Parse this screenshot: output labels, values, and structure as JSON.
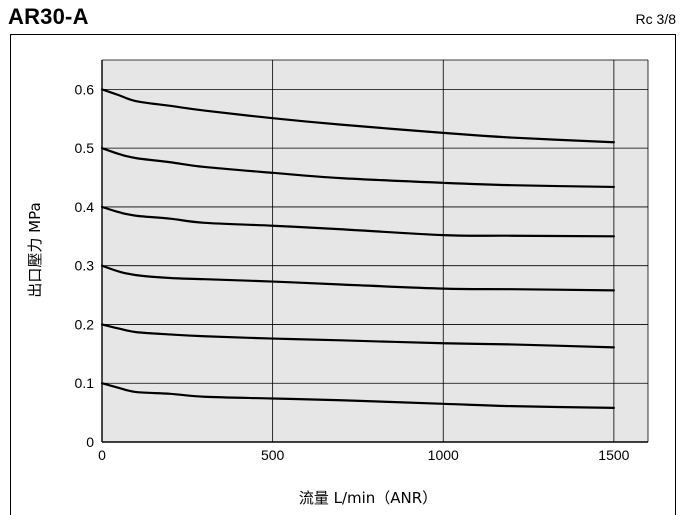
{
  "header": {
    "title": "AR30-A",
    "port_size": "Rc 3/8"
  },
  "chart_data": {
    "type": "line",
    "title": "AR30-A",
    "xlabel": "流量 L/min（ANR）",
    "ylabel": "出口壓力 MPa",
    "xlim": [
      0,
      1600
    ],
    "ylim": [
      0,
      0.65
    ],
    "x_ticks": [
      "0",
      "500",
      "1000",
      "1500"
    ],
    "y_ticks": [
      "0",
      "0.1",
      "0.2",
      "0.3",
      "0.4",
      "0.5",
      "0.6"
    ],
    "grid": true,
    "colors": {
      "line": "#000000",
      "plot_bg": "#e6e6e6",
      "grid": "#000000"
    },
    "series": [
      {
        "x": [
          0,
          50,
          100,
          200,
          300,
          500,
          700,
          1000,
          1200,
          1500
        ],
        "values": [
          0.6,
          0.59,
          0.58,
          0.572,
          0.564,
          0.551,
          0.54,
          0.526,
          0.518,
          0.51
        ]
      },
      {
        "x": [
          0,
          50,
          100,
          200,
          300,
          500,
          700,
          1000,
          1200,
          1500
        ],
        "values": [
          0.5,
          0.49,
          0.483,
          0.476,
          0.468,
          0.458,
          0.449,
          0.441,
          0.437,
          0.434
        ]
      },
      {
        "x": [
          0,
          50,
          100,
          200,
          300,
          500,
          700,
          1000,
          1200,
          1500
        ],
        "values": [
          0.4,
          0.391,
          0.385,
          0.38,
          0.373,
          0.368,
          0.362,
          0.352,
          0.351,
          0.35
        ]
      },
      {
        "x": [
          0,
          50,
          100,
          200,
          300,
          500,
          700,
          1000,
          1200,
          1500
        ],
        "values": [
          0.3,
          0.29,
          0.284,
          0.279,
          0.277,
          0.273,
          0.268,
          0.261,
          0.26,
          0.258
        ]
      },
      {
        "x": [
          0,
          50,
          100,
          200,
          300,
          500,
          700,
          1000,
          1200,
          1500
        ],
        "values": [
          0.2,
          0.193,
          0.187,
          0.183,
          0.18,
          0.176,
          0.173,
          0.168,
          0.166,
          0.161
        ]
      },
      {
        "x": [
          0,
          50,
          100,
          200,
          300,
          500,
          700,
          1000,
          1200,
          1500
        ],
        "values": [
          0.1,
          0.092,
          0.085,
          0.082,
          0.077,
          0.074,
          0.071,
          0.065,
          0.061,
          0.058
        ]
      }
    ]
  }
}
